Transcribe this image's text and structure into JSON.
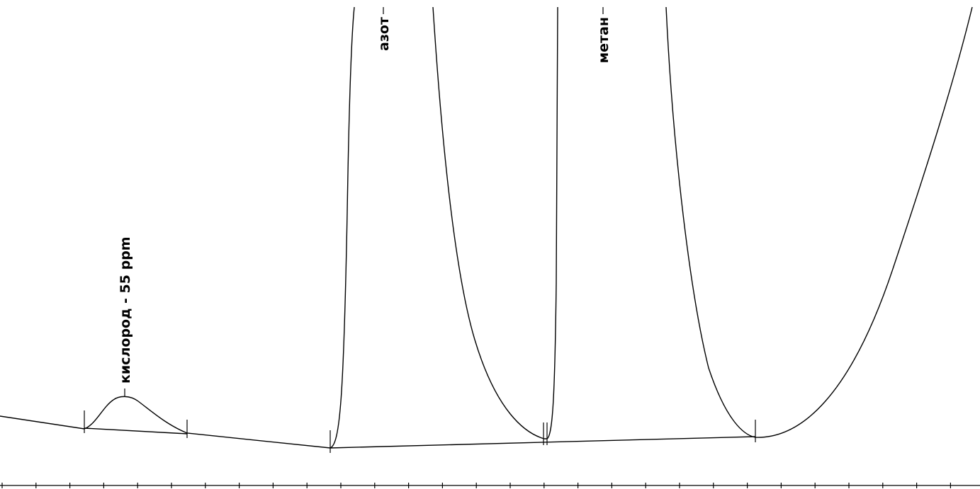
{
  "chart_data": {
    "type": "line",
    "title": "",
    "xlabel": "",
    "ylabel": "",
    "x_axis": {
      "visible": true,
      "tick_labels": false,
      "tick_count": 29
    },
    "y_axis": {
      "visible": false
    },
    "grid": false,
    "legend": "none",
    "peaks": [
      {
        "label": "кислород - 55 ppm",
        "name": "oxygen"
      },
      {
        "label": "азот",
        "name": "nitrogen"
      },
      {
        "label": "метан",
        "name": "methane"
      }
    ]
  }
}
